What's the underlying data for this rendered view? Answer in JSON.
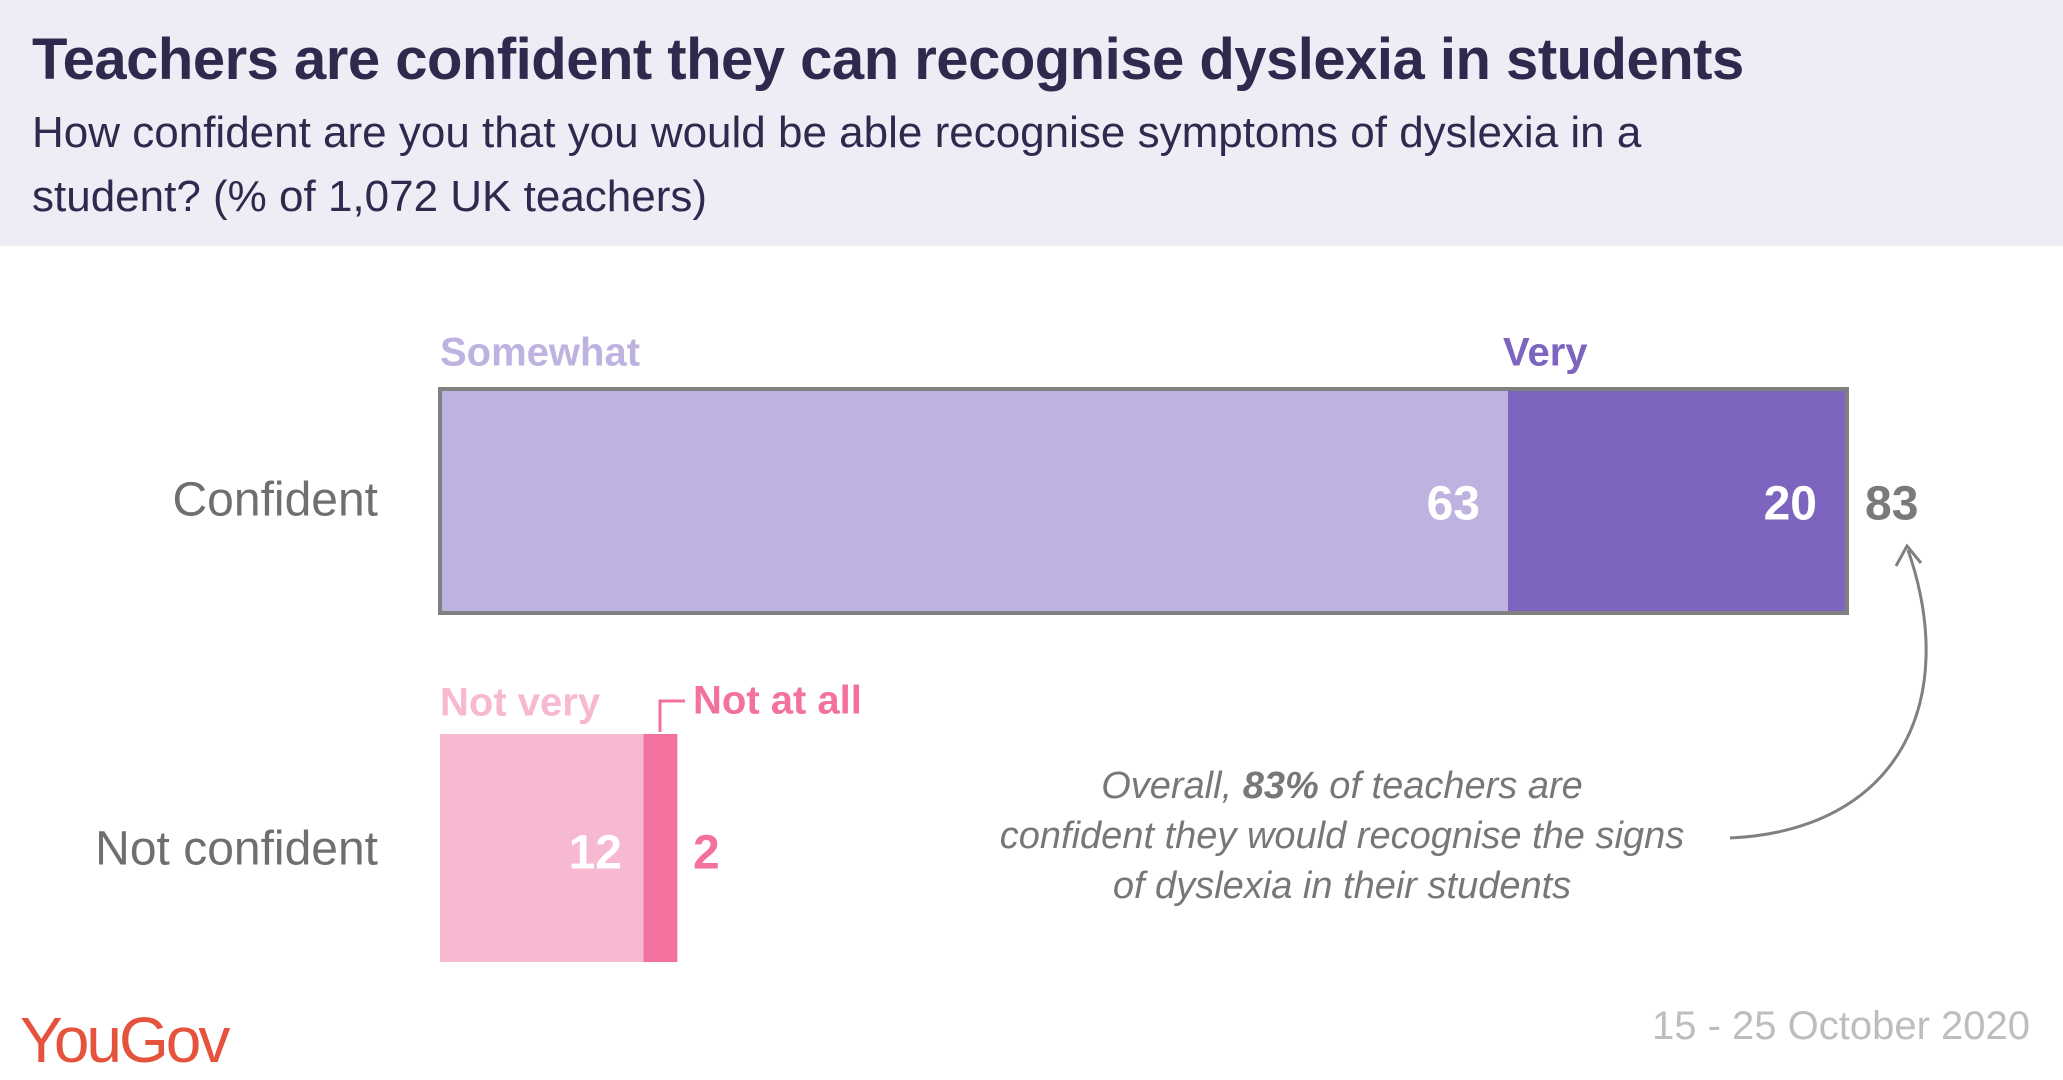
{
  "title": "Teachers are confident they can recognise dyslexia in students",
  "subtitle_lines": [
    "How confident are you that you would be able recognise symptoms of dyslexia in a",
    "student? (% of 1,072 UK teachers)"
  ],
  "chart_data": {
    "type": "bar",
    "orientation": "horizontal",
    "stacked": true,
    "categories": [
      "Confident",
      "Not confident"
    ],
    "series": [
      {
        "name": "Somewhat",
        "category": "Confident",
        "value": 63,
        "color": "#beb3e0"
      },
      {
        "name": "Very",
        "category": "Confident",
        "value": 20,
        "color": "#7c64bf"
      },
      {
        "name": "Not very",
        "category": "Not confident",
        "value": 12,
        "color": "#f7b8d1"
      },
      {
        "name": "Not at all",
        "category": "Not confident",
        "value": 2,
        "color": "#f2719f"
      }
    ],
    "totals": {
      "Confident": "83"
    },
    "annotation": [
      "Overall, ",
      "83%",
      " of teachers are",
      "confident they would recognise the signs",
      "of dyslexia in their students"
    ],
    "value_labels": [
      "63",
      "20",
      "12",
      "2"
    ]
  },
  "logo": "YouGov",
  "date": "15 - 25 October 2020"
}
